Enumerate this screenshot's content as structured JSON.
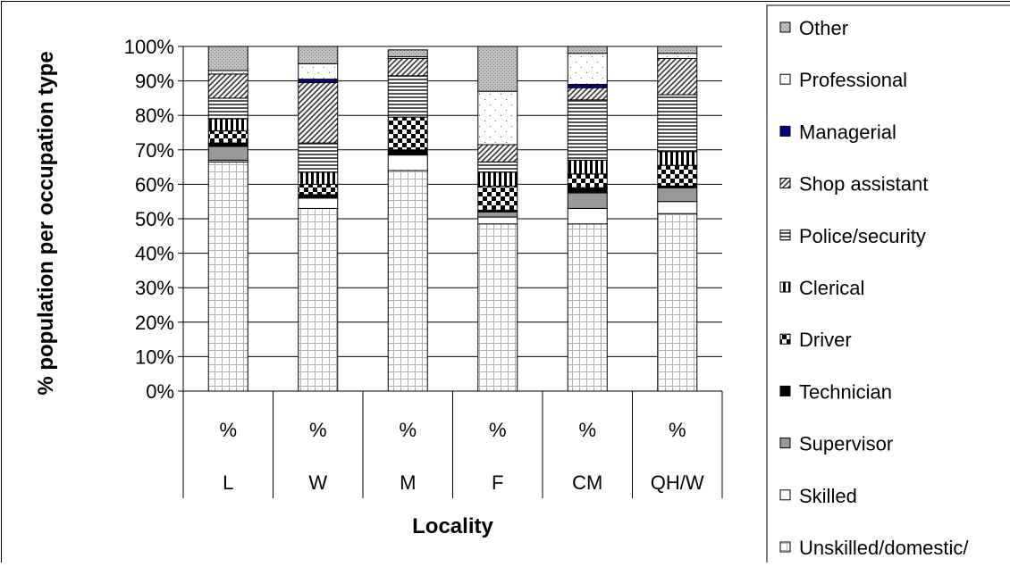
{
  "chart_data": {
    "type": "bar",
    "stacked": true,
    "normalized_percent": true,
    "categories": [
      "L",
      "W",
      "M",
      "F",
      "CM",
      "QH/W"
    ],
    "category_prefix": "%",
    "xlabel": "Locality",
    "ylabel": "% population per occupation type",
    "ylim": [
      0,
      100
    ],
    "yticks": [
      "0%",
      "10%",
      "20%",
      "30%",
      "40%",
      "50%",
      "60%",
      "70%",
      "80%",
      "90%",
      "100%"
    ],
    "grid": true,
    "legend_position": "right",
    "series": [
      {
        "name": "Unskilled/domestic/",
        "pattern": "grid",
        "values": [
          66.5,
          53.0,
          64.0,
          48.5,
          48.5,
          51.5
        ]
      },
      {
        "name": "Skilled",
        "pattern": "white",
        "values": [
          0.5,
          3.0,
          4.5,
          2.0,
          4.5,
          3.5
        ]
      },
      {
        "name": "Supervisor",
        "pattern": "gray",
        "values": [
          4.0,
          0.0,
          0.0,
          1.5,
          4.5,
          4.0
        ]
      },
      {
        "name": "Technician",
        "pattern": "black",
        "values": [
          1.0,
          1.0,
          1.5,
          0.5,
          1.5,
          0.5
        ]
      },
      {
        "name": "Driver",
        "pattern": "checker",
        "values": [
          3.5,
          3.0,
          9.5,
          7.0,
          4.0,
          6.0
        ]
      },
      {
        "name": "Clerical",
        "pattern": "vbars",
        "values": [
          3.5,
          3.5,
          0.0,
          4.0,
          4.0,
          4.0
        ]
      },
      {
        "name": "Police/security",
        "pattern": "hlines",
        "values": [
          6.0,
          8.5,
          12.0,
          3.0,
          17.5,
          16.5
        ]
      },
      {
        "name": "Shop assistant",
        "pattern": "diag",
        "values": [
          7.0,
          17.5,
          5.0,
          5.0,
          3.5,
          10.5
        ]
      },
      {
        "name": "Managerial",
        "pattern": "navy",
        "values": [
          0.0,
          1.0,
          0.0,
          0.0,
          1.0,
          0.0
        ]
      },
      {
        "name": "Professional",
        "pattern": "dots",
        "values": [
          1.0,
          4.5,
          0.5,
          15.5,
          9.0,
          1.5
        ]
      },
      {
        "name": "Other",
        "pattern": "stipple",
        "values": [
          7.0,
          5.0,
          2.0,
          13.0,
          2.0,
          2.0
        ]
      }
    ],
    "colors": {
      "managerial": "#000080",
      "supervisor": "#999999",
      "stipple_bg": "#c0c0c0",
      "grid": "#000000"
    }
  }
}
